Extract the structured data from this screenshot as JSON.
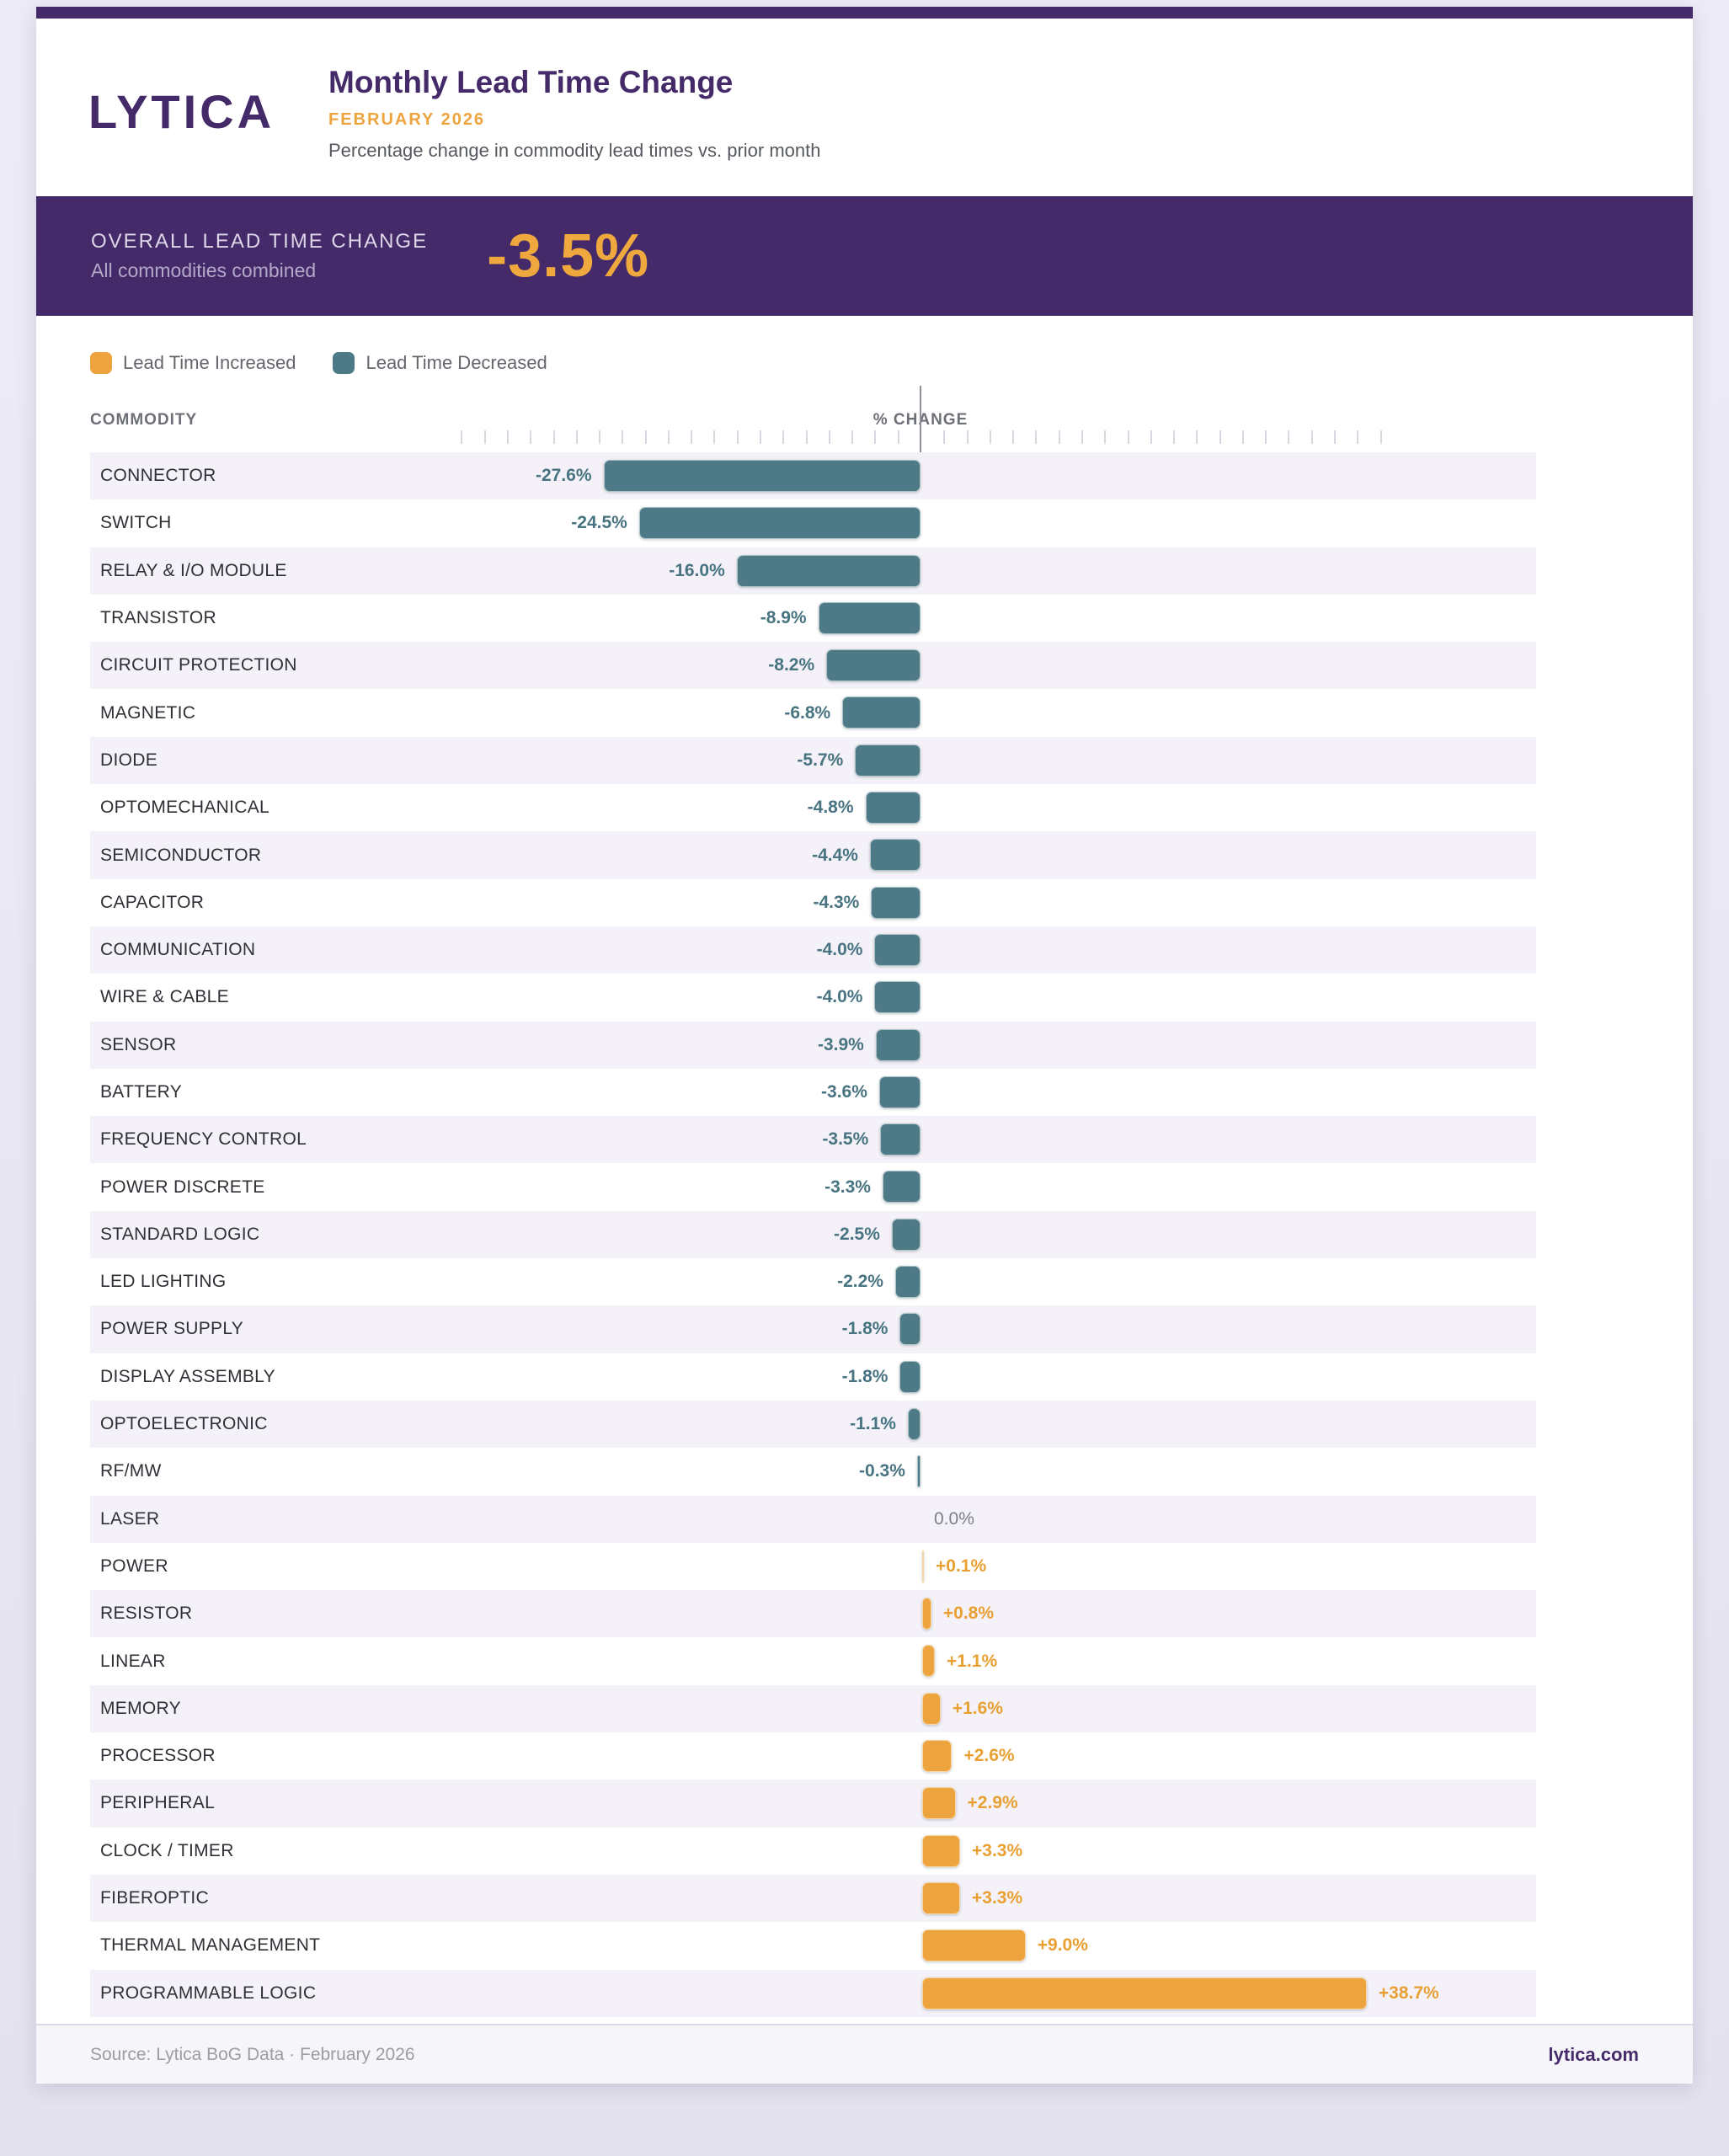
{
  "header": {
    "logo": "LYTICA",
    "title": "Monthly Lead Time Change",
    "month": "FEBRUARY 2026",
    "description": "Percentage change in commodity lead times vs. prior month"
  },
  "banner": {
    "label": "OVERALL LEAD TIME CHANGE",
    "sublabel": "All commodities combined",
    "value": "-3.5%"
  },
  "legend": {
    "increased": "Lead Time Increased",
    "decreased": "Lead Time Decreased"
  },
  "table": {
    "commodity_header": "COMMODITY",
    "change_header": "% CHANGE"
  },
  "colors": {
    "brand_purple": "#452a69",
    "accent_orange": "#eda43f",
    "accent_teal": "#4d7a86",
    "row_band": "#f4f2f8",
    "banner_value_orange": "#efa83e"
  },
  "chart_data": {
    "type": "bar",
    "orientation": "horizontal",
    "title": "Monthly Lead Time Change",
    "subtitle": "FEBRUARY 2026",
    "xlabel": "% CHANGE",
    "ylabel": "COMMODITY",
    "xlim": [
      -40,
      44
    ],
    "tick_step_pct": 2,
    "grid": "top-ticks-only",
    "overall_change_pct": -3.5,
    "bar_color_negative": "#4d7a86",
    "bar_color_positive": "#eda43f",
    "categories": [
      "CONNECTOR",
      "SWITCH",
      "RELAY & I/O MODULE",
      "TRANSISTOR",
      "CIRCUIT PROTECTION",
      "MAGNETIC",
      "DIODE",
      "OPTOMECHANICAL",
      "SEMICONDUCTOR",
      "CAPACITOR",
      "COMMUNICATION",
      "WIRE & CABLE",
      "SENSOR",
      "BATTERY",
      "FREQUENCY CONTROL",
      "POWER DISCRETE",
      "STANDARD LOGIC",
      "LED LIGHTING",
      "POWER SUPPLY",
      "DISPLAY ASSEMBLY",
      "OPTOELECTRONIC",
      "RF/MW",
      "LASER",
      "POWER",
      "RESISTOR",
      "LINEAR",
      "MEMORY",
      "PROCESSOR",
      "PERIPHERAL",
      "CLOCK / TIMER",
      "FIBEROPTIC",
      "THERMAL MANAGEMENT",
      "PROGRAMMABLE LOGIC"
    ],
    "values": [
      -27.6,
      -24.5,
      -16.0,
      -8.9,
      -8.2,
      -6.8,
      -5.7,
      -4.8,
      -4.4,
      -4.3,
      -4.0,
      -4.0,
      -3.9,
      -3.6,
      -3.5,
      -3.3,
      -2.5,
      -2.2,
      -1.8,
      -1.8,
      -1.1,
      -0.3,
      0.0,
      0.1,
      0.8,
      1.1,
      1.6,
      2.6,
      2.9,
      3.3,
      3.3,
      9.0,
      38.7
    ],
    "display_labels": [
      "-27.6%",
      "-24.5%",
      "-16.0%",
      "-8.9%",
      "-8.2%",
      "-6.8%",
      "-5.7%",
      "-4.8%",
      "-4.4%",
      "-4.3%",
      "-4.0%",
      "-4.0%",
      "-3.9%",
      "-3.6%",
      "-3.5%",
      "-3.3%",
      "-2.5%",
      "-2.2%",
      "-1.8%",
      "-1.8%",
      "-1.1%",
      "-0.3%",
      "0.0%",
      "+0.1%",
      "+0.8%",
      "+1.1%",
      "+1.6%",
      "+2.6%",
      "+2.9%",
      "+3.3%",
      "+3.3%",
      "+9.0%",
      "+38.7%"
    ]
  },
  "footer": {
    "source": "Source: Lytica BoG Data  ·  February 2026",
    "site": "lytica.com"
  }
}
